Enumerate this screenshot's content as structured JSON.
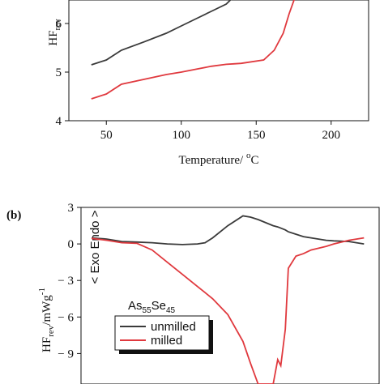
{
  "chart_data": [
    {
      "type": "line",
      "ylabel": {
        "main": "HF",
        "sub": "rev"
      },
      "xlabel": {
        "main": "Temperature/ ",
        "sup": "o",
        "unit": "C"
      },
      "x": [
        40,
        50,
        60,
        75,
        90,
        100,
        110,
        120,
        130,
        135,
        140,
        155,
        162,
        168,
        172,
        176
      ],
      "xlim": [
        25,
        225
      ],
      "xticks": [
        50,
        100,
        150,
        200
      ],
      "ylim": [
        4,
        6.5
      ],
      "yticks": [
        4,
        5,
        6
      ],
      "series": [
        {
          "name": "unmilled",
          "color": "#3a3a3a",
          "values": [
            5.15,
            5.25,
            5.45,
            5.62,
            5.8,
            5.95,
            6.1,
            6.25,
            6.4,
            6.55,
            null,
            null,
            null,
            null,
            null,
            null
          ]
        },
        {
          "name": "milled",
          "color": "#e0393e",
          "values": [
            4.45,
            4.55,
            4.75,
            4.85,
            4.95,
            5.0,
            5.06,
            5.12,
            5.16,
            5.17,
            5.18,
            5.25,
            5.45,
            5.8,
            6.2,
            6.55
          ]
        }
      ]
    },
    {
      "type": "line",
      "title": "(b)",
      "ylabel": {
        "main": "HF",
        "sub": "rev",
        "rest": "/mWg",
        "sup": "-1"
      },
      "annotation": "< Exo Endo >",
      "compound": {
        "a": "As",
        "an": "55",
        "b": "Se",
        "bn": "45"
      },
      "x": [
        40,
        50,
        60,
        70,
        80,
        90,
        100,
        110,
        115,
        120,
        130,
        140,
        145,
        150,
        160,
        163,
        165,
        168,
        170,
        175,
        180,
        185,
        195,
        200,
        210,
        220
      ],
      "xlim": [
        33,
        230
      ],
      "ylim": [
        -11.5,
        3
      ],
      "yticks": [
        3,
        0,
        {
          "value": -3,
          "label": "− 3"
        },
        {
          "value": -6,
          "label": "− 6"
        },
        {
          "value": -9,
          "label": "− 9"
        }
      ],
      "series": [
        {
          "name": "unmilled",
          "color": "#3a3a3a",
          "values": [
            0.5,
            0.4,
            0.2,
            0.15,
            0.1,
            0,
            -0.05,
            0,
            0.1,
            0.5,
            1.5,
            2.3,
            2.2,
            2.0,
            1.5,
            1.4,
            1.3,
            1.15,
            1.0,
            0.8,
            0.6,
            0.5,
            0.3,
            0.25,
            0.2,
            0
          ]
        },
        {
          "name": "milled",
          "color": "#e0393e",
          "values": [
            0.45,
            0.3,
            0.1,
            0.05,
            -0.5,
            -1.5,
            -2.5,
            -3.5,
            -4,
            -4.5,
            -5.8,
            -8,
            -9.8,
            -11.5,
            -11.5,
            -9.5,
            -10,
            -7,
            -2,
            -1,
            -0.8,
            -0.5,
            -0.2,
            0,
            0.3,
            0.5
          ]
        }
      ]
    }
  ]
}
